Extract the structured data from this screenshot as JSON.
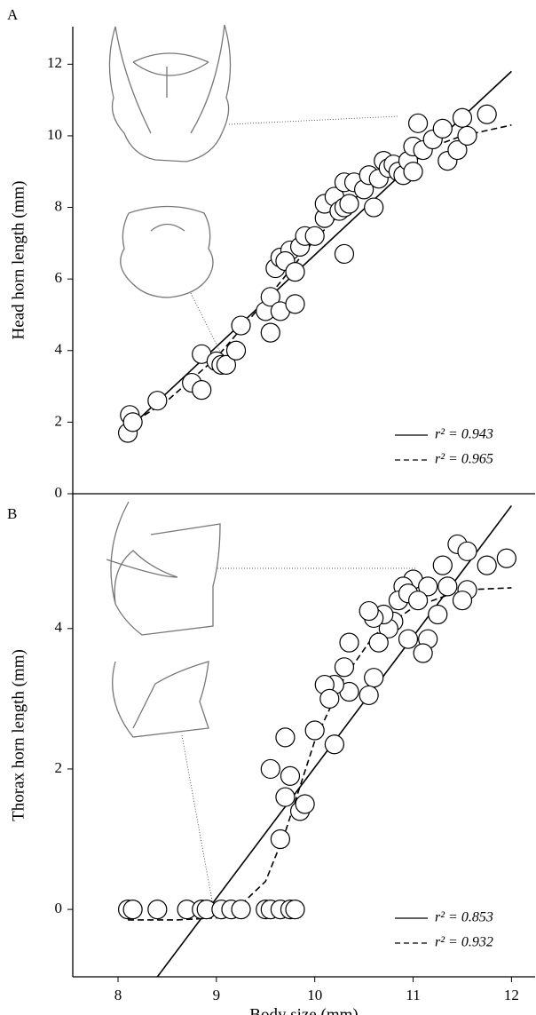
{
  "chart_data": [
    {
      "type": "scatter",
      "panel_label": "A",
      "y_label": "Head horn length (mm)",
      "xlim": [
        7.54,
        12.24
      ],
      "ylim": [
        0,
        13.05
      ],
      "yticks": [
        0,
        2,
        4,
        6,
        8,
        10,
        12
      ],
      "points": {
        "color": "#000000",
        "x": [
          8.1,
          8.12,
          8.15,
          8.4,
          8.75,
          8.85,
          8.85,
          9.0,
          9.05,
          9.1,
          9.2,
          9.25,
          9.5,
          9.55,
          9.55,
          9.6,
          9.65,
          9.65,
          9.75,
          9.7,
          9.8,
          9.8,
          9.85,
          9.9,
          10.0,
          10.1,
          10.1,
          10.2,
          10.25,
          10.3,
          10.3,
          10.3,
          10.35,
          10.4,
          10.5,
          10.55,
          10.6,
          10.65,
          10.7,
          10.75,
          10.8,
          10.85,
          10.9,
          10.95,
          11.0,
          11.0,
          11.05,
          11.1,
          11.2,
          11.3,
          11.35,
          11.45,
          11.5,
          11.55,
          11.75
        ],
        "values": [
          1.7,
          2.2,
          2.0,
          2.6,
          3.1,
          2.9,
          3.9,
          3.7,
          3.6,
          3.6,
          4.0,
          4.7,
          5.1,
          5.5,
          4.5,
          6.3,
          6.6,
          5.1,
          6.8,
          6.5,
          6.2,
          5.3,
          6.9,
          7.2,
          7.2,
          7.7,
          8.1,
          8.3,
          7.9,
          8.0,
          6.7,
          8.7,
          8.1,
          8.7,
          8.5,
          8.9,
          8.0,
          8.8,
          9.3,
          9.1,
          9.2,
          9.0,
          8.9,
          9.3,
          9.7,
          9.0,
          10.35,
          9.6,
          9.9,
          10.2,
          9.3,
          9.6,
          10.5,
          10.0,
          10.6
        ]
      },
      "series": [
        {
          "name": "r² = 0.943",
          "style": "solid",
          "color": "#000000",
          "x": [
            8.1,
            12.0
          ],
          "values": [
            1.8,
            11.8
          ]
        },
        {
          "name": "r² = 0.965",
          "style": "dashed",
          "color": "#000000",
          "x": [
            8.1,
            8.5,
            9.0,
            9.5,
            10.0,
            10.5,
            11.0,
            11.5,
            12.0
          ],
          "values": [
            1.9,
            2.6,
            3.8,
            5.4,
            7.1,
            8.5,
            9.5,
            10.0,
            10.3
          ]
        }
      ]
    },
    {
      "type": "scatter",
      "panel_label": "B",
      "y_label": "Thorax horn length (mm)",
      "x_label": "Body size (mm)",
      "xlim": [
        7.54,
        12.24
      ],
      "ylim": [
        -0.96,
        5.92
      ],
      "xticks": [
        8,
        9,
        10,
        11,
        12
      ],
      "yticks": [
        0,
        2,
        4
      ],
      "points": {
        "color": "#000000",
        "x": [
          11.45,
          11.55,
          11.95,
          11.75,
          11.3,
          11.0,
          10.9,
          11.15,
          10.85,
          10.95,
          11.05,
          11.35,
          11.55,
          11.5,
          11.25,
          11.15,
          11.1,
          10.8,
          10.75,
          10.7,
          10.6,
          10.55,
          10.65,
          10.95,
          10.35,
          10.3,
          10.35,
          10.2,
          10.1,
          10.15,
          10.6,
          10.55,
          10.2,
          10.0,
          9.7,
          9.55,
          9.75,
          9.7,
          9.85,
          9.9,
          9.65,
          8.1,
          8.15,
          8.4,
          8.7,
          8.85,
          8.9,
          9.05,
          9.15,
          9.25,
          9.5,
          9.55,
          9.65,
          9.75,
          9.8
        ],
        "values": [
          5.2,
          5.1,
          5.0,
          4.9,
          4.9,
          4.7,
          4.6,
          4.6,
          4.4,
          4.5,
          4.4,
          4.6,
          4.55,
          4.4,
          4.2,
          3.85,
          3.65,
          4.1,
          4.0,
          4.2,
          4.15,
          4.25,
          3.8,
          3.85,
          3.8,
          3.45,
          3.1,
          3.2,
          3.2,
          3.0,
          3.3,
          3.05,
          2.35,
          2.55,
          2.45,
          2.0,
          1.9,
          1.6,
          1.4,
          1.5,
          1.0,
          0,
          0,
          0,
          0,
          0,
          0,
          0,
          0,
          0,
          0,
          0,
          0,
          0,
          0
        ]
      },
      "series": [
        {
          "name": "r² = 0.853",
          "style": "solid",
          "color": "#000000",
          "x": [
            8.4,
            12.0
          ],
          "values": [
            -0.96,
            5.75
          ]
        },
        {
          "name": "r² = 0.932",
          "style": "dashed",
          "color": "#000000",
          "x": [
            8.1,
            8.6,
            9.0,
            9.2,
            9.5,
            9.7,
            10.0,
            10.3,
            10.6,
            11.0,
            11.5,
            12.0
          ],
          "values": [
            -0.15,
            -0.15,
            -0.12,
            0.0,
            0.4,
            1.1,
            2.4,
            3.3,
            3.9,
            4.3,
            4.55,
            4.58
          ]
        }
      ]
    }
  ]
}
